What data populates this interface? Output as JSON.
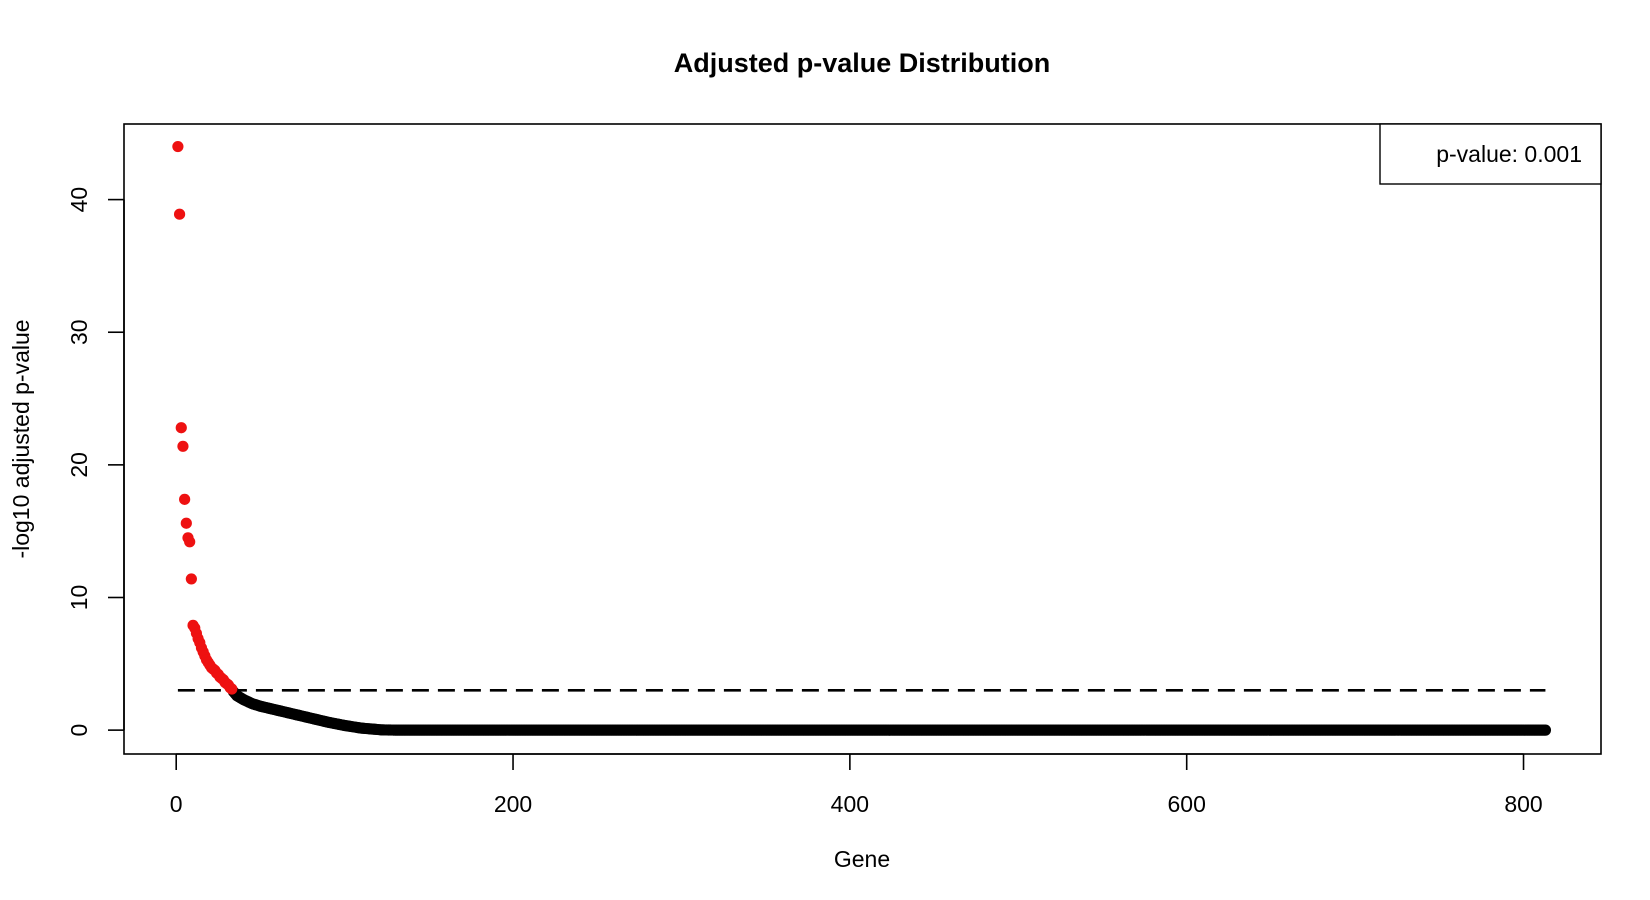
{
  "chart_data": {
    "type": "scatter",
    "title": "Adjusted p-value Distribution",
    "xlabel": "Gene",
    "ylabel": "-log10 adjusted p-value",
    "xlim": [
      -31,
      846
    ],
    "ylim": [
      -1.8,
      45.7
    ],
    "x_ticks": [
      0,
      200,
      400,
      600,
      800
    ],
    "y_ticks": [
      0,
      10,
      20,
      30,
      40
    ],
    "grid": false,
    "legend": {
      "position": "top-right",
      "text": "p-value: 0.001"
    },
    "threshold": {
      "y": 3,
      "style": "dashed",
      "label_value": 0.001
    },
    "colors": {
      "significant": "#ee1111",
      "not_significant": "#000000"
    },
    "n_genes": 813,
    "significant_points": [
      [
        1,
        44.0
      ],
      [
        2,
        38.9
      ],
      [
        3,
        22.8
      ],
      [
        4,
        21.4
      ],
      [
        5,
        17.4
      ],
      [
        6,
        15.6
      ],
      [
        7,
        14.5
      ],
      [
        8,
        14.2
      ],
      [
        9,
        11.4
      ],
      [
        10,
        7.9
      ],
      [
        11,
        7.7
      ],
      [
        12,
        7.3
      ],
      [
        13,
        6.9
      ],
      [
        14,
        6.6
      ],
      [
        15,
        6.2
      ],
      [
        16,
        5.9
      ],
      [
        17,
        5.6
      ],
      [
        18,
        5.3
      ],
      [
        19,
        5.1
      ],
      [
        20,
        4.9
      ],
      [
        21,
        4.7
      ],
      [
        22,
        4.6
      ],
      [
        23,
        4.5
      ],
      [
        24,
        4.3
      ],
      [
        25,
        4.2
      ],
      [
        26,
        4.0
      ],
      [
        27,
        3.9
      ],
      [
        28,
        3.8
      ],
      [
        29,
        3.6
      ],
      [
        30,
        3.5
      ],
      [
        31,
        3.4
      ],
      [
        32,
        3.2
      ],
      [
        33,
        3.1
      ]
    ],
    "nonsignificant_curve": [
      [
        34,
        2.9
      ],
      [
        36,
        2.6
      ],
      [
        40,
        2.3
      ],
      [
        45,
        2.0
      ],
      [
        50,
        1.8
      ],
      [
        60,
        1.5
      ],
      [
        70,
        1.2
      ],
      [
        80,
        0.9
      ],
      [
        90,
        0.6
      ],
      [
        100,
        0.35
      ],
      [
        110,
        0.15
      ],
      [
        122,
        0.02
      ],
      [
        130,
        0.0
      ],
      [
        813,
        0.0
      ]
    ]
  }
}
